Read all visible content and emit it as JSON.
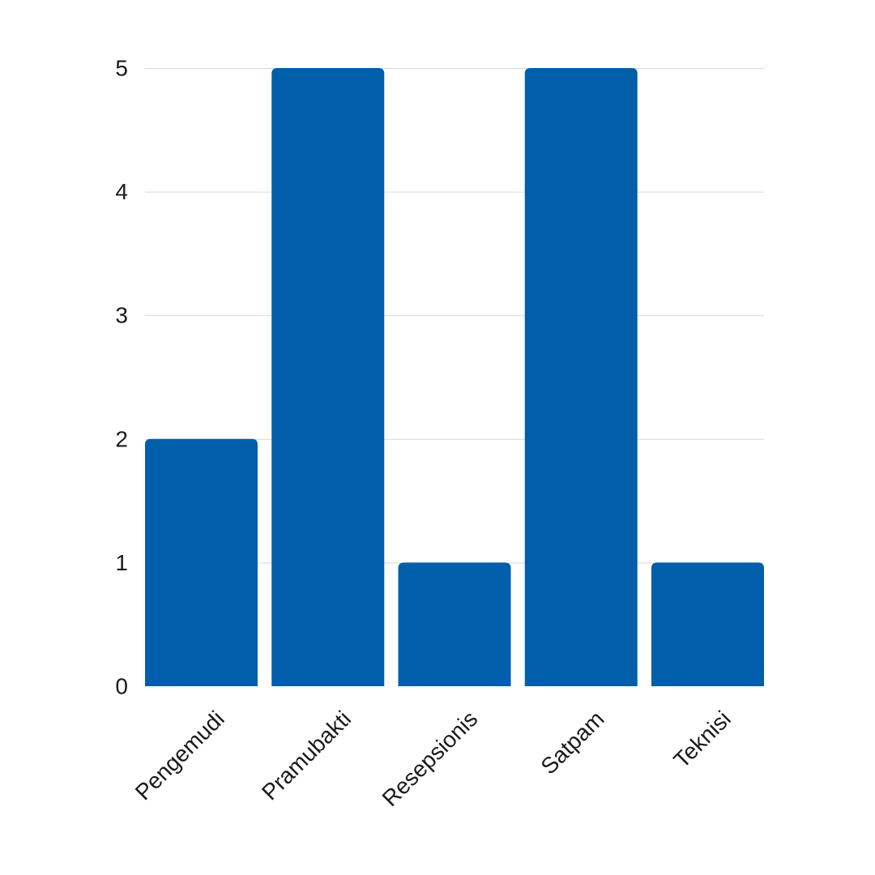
{
  "chart_data": {
    "type": "bar",
    "categories": [
      "Pengemudi",
      "Pramubakti",
      "Resepsionis",
      "Satpam",
      "Teknisi"
    ],
    "values": [
      2,
      5,
      1,
      5,
      1
    ],
    "title": "",
    "xlabel": "",
    "ylabel": "",
    "ylim": [
      0,
      5
    ],
    "yticks": [
      0,
      1,
      2,
      3,
      4,
      5
    ],
    "grid": true,
    "legend": "none",
    "bar_color": "#005EAB",
    "grid_color": "#D9D9D9",
    "text_color": "#1A1A1A"
  }
}
